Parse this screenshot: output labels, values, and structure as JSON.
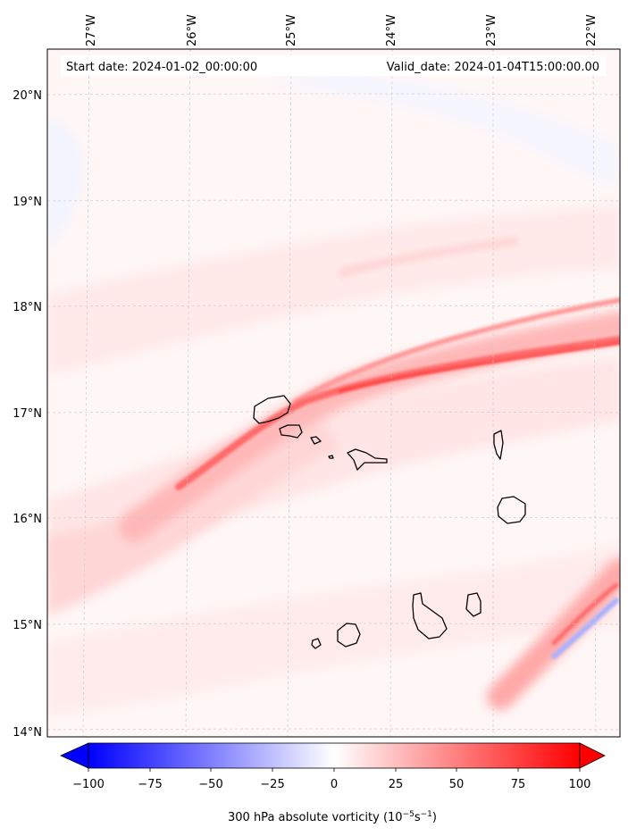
{
  "map": {
    "start_date_text": "Start date: 2024-01-02_00:00:00",
    "valid_date_text": "Valid_date: 2024-01-04T15:00:00.00",
    "lon_labels": [
      "27°W",
      "26°W",
      "25°W",
      "24°W",
      "23°W",
      "22°W"
    ],
    "lat_labels": [
      "20°N",
      "19°N",
      "18°N",
      "17°N",
      "16°N",
      "15°N",
      "14°N"
    ],
    "islands": [
      "santo-antao",
      "sao-vicente",
      "santa-luzia",
      "branco",
      "sao-nicolau",
      "sal",
      "boa-vista",
      "maio",
      "santiago",
      "fogo",
      "brava"
    ]
  },
  "colorbar": {
    "tick_labels": [
      "−100",
      "−75",
      "−50",
      "−25",
      "0",
      "25",
      "50",
      "75",
      "100"
    ],
    "label_main": "300 hPa absolute vorticity (10",
    "label_exp1": "−5",
    "label_mid": "s",
    "label_exp2": "−1",
    "label_end": ")",
    "min": -100,
    "max": 100
  },
  "colors": {
    "neg_extreme": "#0000ff",
    "pos_extreme": "#ff0000",
    "neutral": "#ffffff"
  }
}
